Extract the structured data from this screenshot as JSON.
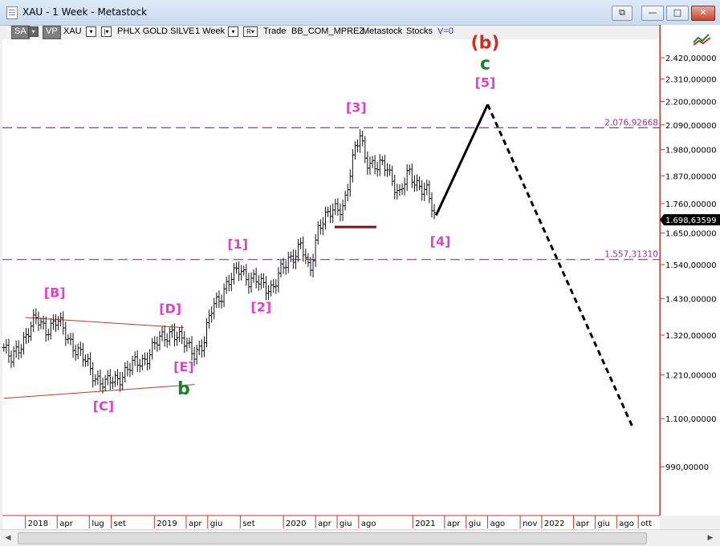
{
  "window": {
    "title": "XAU - 1 Week - Metastock",
    "buttons": {
      "restore_down": "⧉",
      "minimize": "—",
      "maximize": "□",
      "close": "✕"
    }
  },
  "toolbar": {
    "sa_label": "SA",
    "vp_label": "VP",
    "symbol": "XAU",
    "name": "PHLX GOLD SILVE",
    "period": "1 Week",
    "r_label": "R",
    "mode": "Trade",
    "template": "BB_COM_MPREZ",
    "source": "Metastock",
    "type": "Stocks",
    "volume": "V=0",
    "dropdown_glyph": "▾",
    "bar_glyph": "|▾"
  },
  "chart_data": {
    "type": "ohlc",
    "symbol": "XAU",
    "interval": "1 Week",
    "ylim": [
      890,
      2520
    ],
    "y_scale": "log",
    "grid": false,
    "y_ticks": [
      990,
      1100,
      1210,
      1320,
      1430,
      1540,
      1650,
      1760,
      1870,
      1980,
      2090,
      2200,
      2310,
      2420
    ],
    "y_tick_labels": [
      "990,00000",
      "1.100,00000",
      "1.210,00000",
      "1.320,00000",
      "1.430,00000",
      "1.540,00000",
      "1.650,00000",
      "1.760,00000",
      "1.870,00000",
      "1.980,00000",
      "2.090,00000",
      "2.200,00000",
      "2.310,00000",
      "2.420,00000"
    ],
    "x_ticks": [
      {
        "label": "2018",
        "date": "2018-01-01"
      },
      {
        "label": "apr",
        "date": "2018-04-01"
      },
      {
        "label": "lug",
        "date": "2018-07-01"
      },
      {
        "label": "set",
        "date": "2018-09-01"
      },
      {
        "label": "2019",
        "date": "2019-01-01"
      },
      {
        "label": "apr",
        "date": "2019-04-01"
      },
      {
        "label": "giu",
        "date": "2019-06-01"
      },
      {
        "label": "set",
        "date": "2019-09-01"
      },
      {
        "label": "2020",
        "date": "2020-01-01"
      },
      {
        "label": "apr",
        "date": "2020-04-01"
      },
      {
        "label": "giu",
        "date": "2020-06-01"
      },
      {
        "label": "ago",
        "date": "2020-08-01"
      },
      {
        "label": "2021",
        "date": "2021-01-01"
      },
      {
        "label": "apr",
        "date": "2021-04-01"
      },
      {
        "label": "giu",
        "date": "2021-06-01"
      },
      {
        "label": "ago",
        "date": "2021-08-01"
      },
      {
        "label": "nov",
        "date": "2021-11-01"
      },
      {
        "label": "2022",
        "date": "2022-01-01"
      },
      {
        "label": "apr",
        "date": "2022-04-01"
      },
      {
        "label": "giu",
        "date": "2022-06-01"
      },
      {
        "label": "ago",
        "date": "2022-08-01"
      },
      {
        "label": "ott",
        "date": "2022-10-01"
      }
    ],
    "price_path": [
      {
        "date": "2017-11-01",
        "price": 1285
      },
      {
        "date": "2017-11-20",
        "price": 1245
      },
      {
        "date": "2017-12-20",
        "price": 1300
      },
      {
        "date": "2018-02-01",
        "price": 1365
      },
      {
        "date": "2018-03-01",
        "price": 1340
      },
      {
        "date": "2018-04-01",
        "price": 1360
      },
      {
        "date": "2018-05-01",
        "price": 1315
      },
      {
        "date": "2018-06-01",
        "price": 1270
      },
      {
        "date": "2018-07-15",
        "price": 1210
      },
      {
        "date": "2018-08-15",
        "price": 1185
      },
      {
        "date": "2018-09-15",
        "price": 1198
      },
      {
        "date": "2018-10-15",
        "price": 1225
      },
      {
        "date": "2018-12-01",
        "price": 1250
      },
      {
        "date": "2019-01-01",
        "price": 1290
      },
      {
        "date": "2019-02-20",
        "price": 1335
      },
      {
        "date": "2019-03-20",
        "price": 1300
      },
      {
        "date": "2019-04-25",
        "price": 1275
      },
      {
        "date": "2019-05-20",
        "price": 1290
      },
      {
        "date": "2019-06-15",
        "price": 1410
      },
      {
        "date": "2019-08-01",
        "price": 1480
      },
      {
        "date": "2019-09-01",
        "price": 1535
      },
      {
        "date": "2019-09-25",
        "price": 1490
      },
      {
        "date": "2019-11-01",
        "price": 1475
      },
      {
        "date": "2019-12-01",
        "price": 1465
      },
      {
        "date": "2020-01-15",
        "price": 1555
      },
      {
        "date": "2020-02-20",
        "price": 1610
      },
      {
        "date": "2020-03-15",
        "price": 1500
      },
      {
        "date": "2020-04-10",
        "price": 1690
      },
      {
        "date": "2020-05-15",
        "price": 1720
      },
      {
        "date": "2020-06-20",
        "price": 1760
      },
      {
        "date": "2020-07-20",
        "price": 1960
      },
      {
        "date": "2020-08-05",
        "price": 2040
      },
      {
        "date": "2020-08-20",
        "price": 1950
      },
      {
        "date": "2020-09-20",
        "price": 1900
      },
      {
        "date": "2020-10-20",
        "price": 1910
      },
      {
        "date": "2020-11-25",
        "price": 1790
      },
      {
        "date": "2020-12-20",
        "price": 1880
      },
      {
        "date": "2021-01-10",
        "price": 1850
      },
      {
        "date": "2021-02-10",
        "price": 1800
      },
      {
        "date": "2021-03-08",
        "price": 1690
      }
    ],
    "projection_solid": [
      {
        "date": "2021-03-08",
        "price": 1715
      },
      {
        "date": "2021-08-01",
        "price": 2185
      }
    ],
    "projection_dashed": [
      {
        "date": "2021-08-01",
        "price": 2185
      },
      {
        "date": "2022-09-15",
        "price": 1080
      }
    ],
    "horizontal_levels": [
      {
        "value": 2076.92668,
        "label": "2.076,92668"
      },
      {
        "value": 1557.3131,
        "label": "1.557,31310"
      }
    ],
    "current_price": {
      "value": 1698.63599,
      "label": "1.698,63599"
    },
    "support_segment": {
      "date_from": "2020-05-25",
      "date_to": "2020-09-20",
      "price": 1672
    },
    "triangle_lines": [
      {
        "from": {
          "date": "2017-11-01",
          "price": 1150
        },
        "to": {
          "date": "2019-04-25",
          "price": 1185
        }
      },
      {
        "from": {
          "date": "2018-01-01",
          "price": 1372
        },
        "to": {
          "date": "2019-03-25",
          "price": 1342
        }
      }
    ],
    "annotations": [
      {
        "text": "[B]",
        "date": "2018-03-25",
        "price": 1435,
        "color": "#e33ec8"
      },
      {
        "text": "[C]",
        "date": "2018-08-10",
        "price": 1120,
        "color": "#e33ec8"
      },
      {
        "text": "[D]",
        "date": "2019-02-15",
        "price": 1385,
        "color": "#e33ec8"
      },
      {
        "text": "[E]",
        "date": "2019-03-25",
        "price": 1220,
        "color": "#e33ec8"
      },
      {
        "text": "b",
        "date": "2019-03-25",
        "price": 1160,
        "color": "#18822d"
      },
      {
        "text": "[1]",
        "date": "2019-08-25",
        "price": 1595,
        "color": "#e33ec8"
      },
      {
        "text": "[2]",
        "date": "2019-10-30",
        "price": 1390,
        "color": "#e33ec8"
      },
      {
        "text": "[3]",
        "date": "2020-07-25",
        "price": 2150,
        "color": "#e33ec8"
      },
      {
        "text": "[4]",
        "date": "2021-03-20",
        "price": 1605,
        "color": "#e33ec8"
      },
      {
        "text": "[5]",
        "date": "2021-07-25",
        "price": 2270,
        "color": "#e33ec8"
      },
      {
        "text": "c",
        "date": "2021-07-25",
        "price": 2360,
        "color": "#18822d"
      },
      {
        "text": "(b)",
        "date": "2021-07-25",
        "price": 2470,
        "color": "#d62b1a"
      }
    ]
  },
  "colors": {
    "bars": "#111111",
    "level_lines": "#8e3a8e",
    "triangle": "#c0392b",
    "axis_border": "#c0392b",
    "price_tag": "#000000"
  }
}
